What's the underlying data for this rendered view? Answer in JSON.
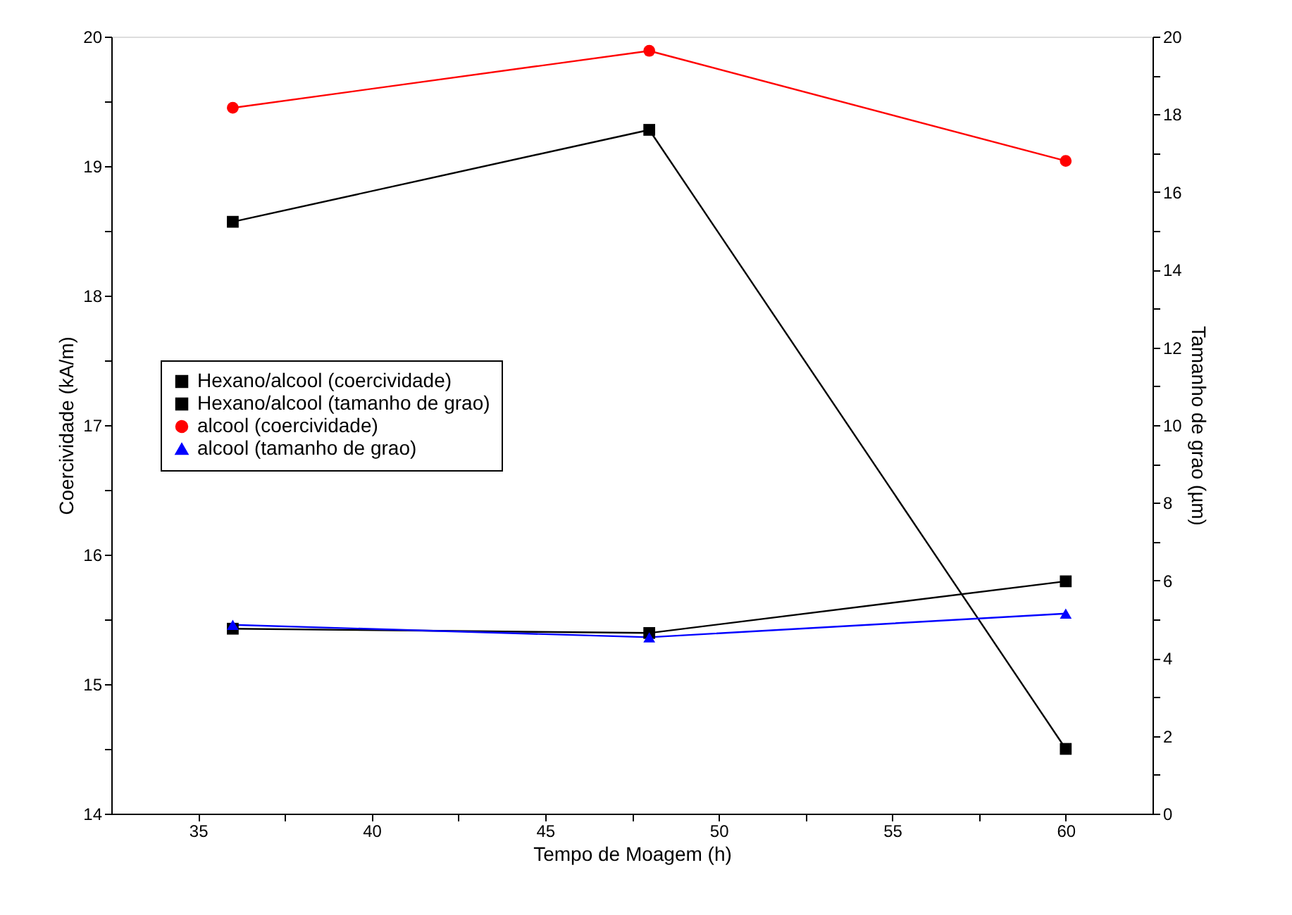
{
  "chart_data": {
    "type": "line",
    "xlabel": "Tempo de Moagem (h)",
    "ylabel": "Coercividade (kA/m)",
    "y2label": "Tamanho de grao (µm)",
    "x": [
      36,
      48,
      60
    ],
    "series": [
      {
        "name": "Hexano/alcool (coercividade)",
        "color": "#000000",
        "marker": "square",
        "values": [
          18.57,
          19.28,
          14.5
        ]
      },
      {
        "name": "Hexano/alcool (tamanho de grao)",
        "color": "#000000",
        "marker": "square",
        "axis": "y2",
        "values": [
          4.76,
          4.65,
          5.98
        ]
      },
      {
        "name": "alcool (coercividade)",
        "color": "#ff0000",
        "marker": "circle",
        "values": [
          19.45,
          19.89,
          19.04
        ]
      },
      {
        "name": "alcool (tamanho de grao)",
        "color": "#0000ff",
        "marker": "triangle",
        "axis": "y2",
        "values": [
          4.86,
          4.54,
          5.15
        ]
      }
    ],
    "xlim": [
      32.5,
      62.5
    ],
    "xticks": [
      35,
      {
        "value": 37.5,
        "label": null
      },
      40,
      {
        "value": 42.5,
        "label": null
      },
      45,
      {
        "value": 47.5,
        "label": null
      },
      50,
      {
        "value": 52.5,
        "label": null
      },
      55,
      {
        "value": 57.5,
        "label": null
      },
      60
    ],
    "ylim": [
      14,
      20
    ],
    "yticks": [
      14,
      {
        "value": 14.5,
        "label": null
      },
      15,
      {
        "value": 15.5,
        "label": null
      },
      16,
      {
        "value": 16.5,
        "label": null
      },
      17,
      {
        "value": 17.5,
        "label": null
      },
      18,
      {
        "value": 18.5,
        "label": null
      },
      19,
      {
        "value": 19.5,
        "label": null
      },
      20
    ],
    "y2lim": [
      0,
      20
    ],
    "y2ticks": [
      0,
      {
        "value": 1,
        "label": null
      },
      2,
      {
        "value": 3,
        "label": null
      },
      4,
      {
        "value": 5,
        "label": null
      },
      6,
      {
        "value": 7,
        "label": null
      },
      8,
      {
        "value": 9,
        "label": null
      },
      10,
      {
        "value": 11,
        "label": null
      },
      12,
      {
        "value": 13,
        "label": null
      },
      14,
      {
        "value": 15,
        "label": null
      },
      16,
      {
        "value": 17,
        "label": null
      },
      18,
      {
        "value": 19,
        "label": null
      },
      20
    ],
    "grid": false,
    "legend": "left",
    "line_style": "solid"
  }
}
